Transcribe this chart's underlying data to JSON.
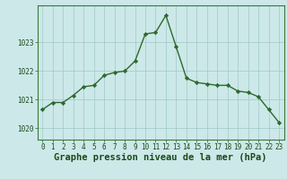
{
  "x": [
    0,
    1,
    2,
    3,
    4,
    5,
    6,
    7,
    8,
    9,
    10,
    11,
    12,
    13,
    14,
    15,
    16,
    17,
    18,
    19,
    20,
    21,
    22,
    23
  ],
  "y": [
    1020.65,
    1020.9,
    1020.9,
    1021.15,
    1021.45,
    1021.5,
    1021.85,
    1021.95,
    1022.0,
    1022.35,
    1023.3,
    1023.35,
    1023.95,
    1022.85,
    1021.75,
    1021.6,
    1021.55,
    1021.5,
    1021.5,
    1021.3,
    1021.25,
    1021.1,
    1020.65,
    1020.2
  ],
  "line_color": "#2d6a2d",
  "marker": "D",
  "marker_size": 2.2,
  "background_color": "#cce8e8",
  "grid_color": "#a0c8c8",
  "xlabel": "Graphe pression niveau de la mer (hPa)",
  "xlabel_fontsize": 7.5,
  "xlabel_color": "#1a4a1a",
  "xlabel_fontweight": "bold",
  "ylim": [
    1019.6,
    1024.3
  ],
  "yticks": [
    1020,
    1021,
    1022,
    1023
  ],
  "ytick_labels": [
    "1020",
    "1021",
    "1022",
    "1023"
  ],
  "xticks": [
    0,
    1,
    2,
    3,
    4,
    5,
    6,
    7,
    8,
    9,
    10,
    11,
    12,
    13,
    14,
    15,
    16,
    17,
    18,
    19,
    20,
    21,
    22,
    23
  ],
  "tick_fontsize": 5.5,
  "tick_color": "#1a4a1a",
  "spine_color": "#3a7a3a",
  "line_width": 1.0
}
